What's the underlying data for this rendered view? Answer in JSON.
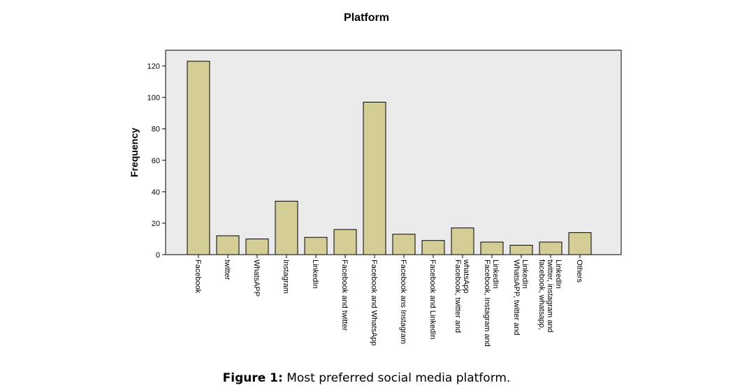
{
  "caption": {
    "label": "Figure 1:",
    "text": " Most preferred social media platform."
  },
  "chart_data": {
    "type": "bar",
    "title": "Platform",
    "xlabel": "",
    "ylabel": "Frequency",
    "ylim": [
      0,
      130
    ],
    "yticks": [
      0,
      20,
      40,
      60,
      80,
      100,
      120
    ],
    "grid": false,
    "legend": "none",
    "categories": [
      "Facebook",
      "twitter",
      "WhatsAPP",
      "Instagram",
      "LinkedIn",
      "Facebook and twitter",
      "Facebook and WhatsApp",
      "Facebook ans Instagram",
      "Facebook and LinkedIn",
      "Facebook, twitter and whatsApp",
      "Facebook, Instagram and LinkedIn",
      "WhatsAPP, twitter and LinkedIn",
      "facebook, whatsapp, twitter, instagram and LinkedIn",
      "Others"
    ],
    "category_lines": [
      [
        "Facebook"
      ],
      [
        "twitter"
      ],
      [
        "WhatsAPP"
      ],
      [
        "Instagram"
      ],
      [
        "LinkedIn"
      ],
      [
        "Facebook and twitter"
      ],
      [
        "Facebook and WhatsApp"
      ],
      [
        "Facebook ans Instagram"
      ],
      [
        "Facebook and LinkedIn"
      ],
      [
        "Facebook, twitter and",
        "whatsApp"
      ],
      [
        "Facebook, Instagram and",
        "LinkedIn"
      ],
      [
        "WhatsAPP, twitter and",
        "LinkedIn"
      ],
      [
        "facebook, whatsapp,",
        "twitter, instagram and",
        "LinkedIn"
      ],
      [
        "Others"
      ]
    ],
    "values": [
      123,
      12,
      10,
      34,
      11,
      16,
      97,
      13,
      9,
      17,
      8,
      6,
      8,
      14
    ],
    "colors": {
      "bar_fill": "#d4cd96",
      "bar_stroke": "#000000",
      "plot_background": "#ebebeb",
      "axis": "#000000"
    }
  }
}
